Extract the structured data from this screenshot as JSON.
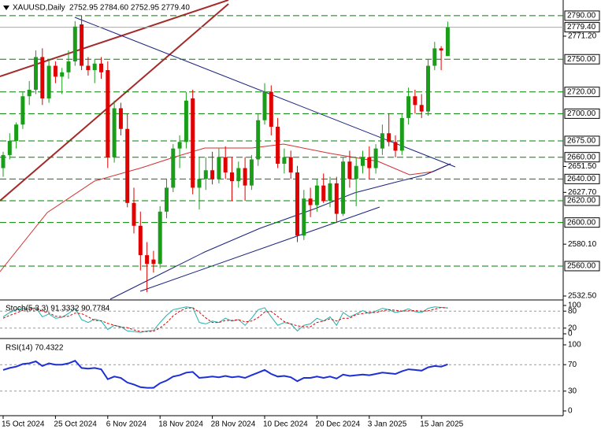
{
  "chart_data": [
    {
      "type": "candlestick",
      "title": "XAUUSD,Daily",
      "ohlc_text": "2752.95 2784.60 2752.95 2779.40",
      "categories": [
        "15 Oct 2024",
        null,
        null,
        null,
        null,
        null,
        null,
        null,
        "25 Oct 2024",
        null,
        null,
        null,
        null,
        null,
        null,
        null,
        "6 Nov 2024",
        null,
        null,
        null,
        null,
        null,
        null,
        null,
        "18 Nov 2024",
        null,
        null,
        null,
        null,
        null,
        null,
        null,
        "28 Nov 2024",
        null,
        null,
        null,
        null,
        null,
        null,
        null,
        "10 Dec 2024",
        null,
        null,
        null,
        null,
        null,
        null,
        null,
        "20 Dec 2024",
        null,
        null,
        null,
        null,
        null,
        null,
        null,
        "3 Jan 2025",
        null,
        null,
        null,
        null,
        null,
        null,
        null,
        "15 Jan 2025",
        null,
        null,
        null,
        null
      ],
      "open": [
        2650,
        2662,
        2675,
        2690,
        2716,
        2722,
        2752,
        2714,
        2744,
        2734,
        2738,
        2748,
        2782,
        2744,
        2740,
        2746,
        2740,
        2660,
        2705,
        2686,
        2618,
        2597,
        2570,
        2566,
        2562,
        2610,
        2632,
        2668,
        2674,
        2714,
        2632,
        2640,
        2648,
        2640,
        2660,
        2646,
        2638,
        2650,
        2634,
        2658,
        2694,
        2720,
        2688,
        2654,
        2660,
        2646,
        2588,
        2622,
        2616,
        2634,
        2620,
        2636,
        2608,
        2656,
        2640,
        2652,
        2660,
        2650,
        2668,
        2682,
        2674,
        2666,
        2696,
        2716,
        2708,
        2702,
        2744,
        2760,
        2752.95
      ],
      "high": [
        2665,
        2682,
        2692,
        2720,
        2730,
        2758,
        2760,
        2750,
        2748,
        2742,
        2758,
        2785,
        2790,
        2752,
        2750,
        2752,
        2748,
        2712,
        2710,
        2700,
        2632,
        2610,
        2582,
        2574,
        2615,
        2640,
        2672,
        2680,
        2720,
        2722,
        2660,
        2660,
        2665,
        2668,
        2670,
        2660,
        2656,
        2660,
        2662,
        2700,
        2728,
        2726,
        2696,
        2668,
        2666,
        2652,
        2630,
        2632,
        2640,
        2645,
        2642,
        2642,
        2660,
        2666,
        2660,
        2666,
        2670,
        2672,
        2690,
        2700,
        2680,
        2700,
        2724,
        2722,
        2718,
        2750,
        2766,
        2762,
        2784.6
      ],
      "low": [
        2642,
        2658,
        2668,
        2686,
        2708,
        2718,
        2708,
        2710,
        2728,
        2718,
        2732,
        2744,
        2740,
        2735,
        2728,
        2732,
        2650,
        2655,
        2680,
        2614,
        2590,
        2556,
        2536,
        2554,
        2558,
        2604,
        2628,
        2650,
        2668,
        2626,
        2612,
        2630,
        2635,
        2636,
        2640,
        2620,
        2632,
        2620,
        2630,
        2652,
        2690,
        2680,
        2650,
        2645,
        2640,
        2582,
        2584,
        2605,
        2610,
        2618,
        2614,
        2600,
        2606,
        2632,
        2615,
        2645,
        2640,
        2645,
        2662,
        2670,
        2660,
        2662,
        2690,
        2700,
        2696,
        2698,
        2740,
        2740,
        2752.95
      ],
      "close": [
        2662,
        2675,
        2690,
        2716,
        2722,
        2752,
        2714,
        2744,
        2734,
        2738,
        2748,
        2780,
        2744,
        2740,
        2746,
        2738,
        2660,
        2705,
        2686,
        2618,
        2597,
        2570,
        2562,
        2562,
        2610,
        2632,
        2668,
        2674,
        2712,
        2632,
        2640,
        2648,
        2640,
        2660,
        2646,
        2638,
        2650,
        2634,
        2658,
        2694,
        2720,
        2688,
        2654,
        2660,
        2646,
        2588,
        2622,
        2616,
        2634,
        2620,
        2636,
        2608,
        2656,
        2640,
        2652,
        2660,
        2650,
        2668,
        2682,
        2674,
        2666,
        2696,
        2716,
        2708,
        2702,
        2744,
        2760,
        2758,
        2779.4
      ],
      "up_color": "#1a9e1a",
      "down_color": "#e00000",
      "level_color": "#008000",
      "ylim": [
        2529.6,
        2800.8
      ],
      "yticks": [
        {
          "value": 2771.2,
          "label": "2771.20"
        },
        {
          "value": 2651.5,
          "label": "2651.50"
        },
        {
          "value": 2627.7,
          "label": "2627.70"
        },
        {
          "value": 2580.1,
          "label": "2580.10"
        },
        {
          "value": 2532.5,
          "label": "2532.50"
        }
      ],
      "levels": [
        {
          "value": 2790,
          "label": "2790.00"
        },
        {
          "value": 2750,
          "label": "2750.00"
        },
        {
          "value": 2720,
          "label": "2720.00"
        },
        {
          "value": 2700,
          "label": "2700.00"
        },
        {
          "value": 2675,
          "label": "2675.00"
        },
        {
          "value": 2660,
          "label": "2660.00"
        },
        {
          "value": 2640,
          "label": "2640.00"
        },
        {
          "value": 2620,
          "label": "2620.00"
        },
        {
          "value": 2600,
          "label": "2600.00"
        },
        {
          "value": 2560,
          "label": "2560.00"
        }
      ],
      "last": {
        "value": 2779.4,
        "label": "2779.40"
      }
    },
    {
      "type": "line",
      "title": "Stoch(5,3,3) 91.3332 90.7784",
      "ylim": [
        0,
        100
      ],
      "yticks": [
        100,
        80,
        20,
        0
      ],
      "series": [
        {
          "color": "#20b2aa",
          "values": [
            60,
            75,
            85,
            90,
            88,
            92,
            60,
            70,
            55,
            58,
            72,
            90,
            50,
            40,
            52,
            45,
            15,
            30,
            25,
            10,
            8,
            5,
            10,
            12,
            40,
            65,
            85,
            90,
            95,
            92,
            40,
            35,
            45,
            40,
            55,
            45,
            50,
            30,
            55,
            85,
            92,
            60,
            30,
            40,
            35,
            10,
            30,
            35,
            55,
            45,
            60,
            30,
            75,
            60,
            70,
            82,
            72,
            80,
            90,
            85,
            75,
            80,
            88,
            78,
            75,
            90,
            95,
            93,
            91.3332
          ]
        },
        {
          "color": "#e00000",
          "dashed": true,
          "values": [
            55,
            65,
            73,
            83,
            88,
            90,
            80,
            74,
            62,
            61,
            62,
            73,
            71,
            60,
            47,
            46,
            37,
            30,
            23,
            22,
            14,
            8,
            8,
            9,
            21,
            39,
            63,
            80,
            90,
            92,
            76,
            56,
            40,
            40,
            47,
            47,
            50,
            42,
            45,
            57,
            77,
            79,
            61,
            43,
            35,
            28,
            25,
            25,
            40,
            45,
            53,
            45,
            55,
            55,
            68,
            71,
            75,
            75,
            81,
            85,
            83,
            80,
            81,
            82,
            80,
            81,
            87,
            93,
            90.7784
          ]
        }
      ]
    },
    {
      "type": "line",
      "title": "RSI(14) 70.4322",
      "ylim": [
        0,
        100
      ],
      "yticks": [
        100,
        70,
        30,
        0
      ],
      "series": [
        {
          "color": "#1e2fd6",
          "width": 2,
          "values": [
            62,
            65,
            67,
            71,
            72,
            75,
            68,
            72,
            70,
            70,
            72,
            76,
            65,
            64,
            65,
            63,
            48,
            52,
            50,
            43,
            40,
            36,
            35,
            35,
            42,
            46,
            52,
            54,
            58,
            59,
            50,
            51,
            52,
            51,
            53,
            51,
            52,
            50,
            54,
            58,
            62,
            56,
            52,
            53,
            51,
            45,
            50,
            50,
            52,
            50,
            52,
            49,
            55,
            53,
            54,
            55,
            54,
            56,
            58,
            57,
            56,
            60,
            63,
            62,
            61,
            66,
            68,
            67,
            70.4322
          ]
        }
      ]
    }
  ]
}
